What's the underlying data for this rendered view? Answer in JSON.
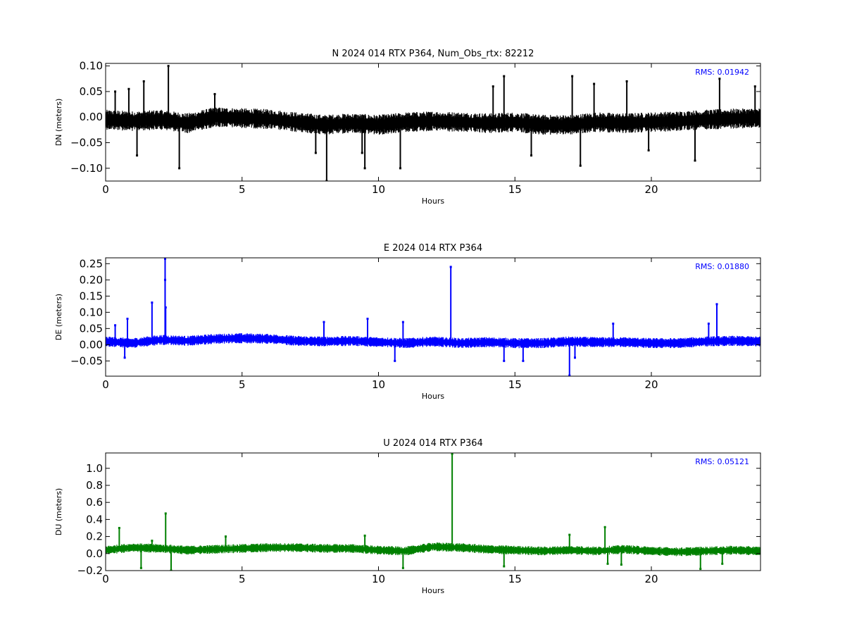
{
  "chart_data": [
    {
      "type": "scatter",
      "title": "N 2024 014 RTX  P364, Num_Obs_rtx: 82212",
      "xlabel": "Hours",
      "ylabel": "DN (meters)",
      "xlim": [
        0,
        24
      ],
      "ylim": [
        -0.125,
        0.105
      ],
      "xticks": [
        "0",
        "5",
        "10",
        "15",
        "20"
      ],
      "yticks": [
        "-0.10",
        "-0.05",
        "0.00",
        "0.05",
        "0.10"
      ],
      "grid": false,
      "rms_label": "RMS:  0.01942",
      "color": "#000000",
      "rms_color": "#0000ff",
      "series": [
        {
          "description": "North residual time series (approximate baseline level, band ±0.015 m)",
          "x": [
            0,
            1,
            2,
            3,
            4,
            5,
            6,
            7,
            8,
            9,
            10,
            11,
            12,
            13,
            14,
            15,
            16,
            17,
            18,
            19,
            20,
            21,
            22,
            23,
            24
          ],
          "y": [
            -0.005,
            -0.008,
            -0.005,
            -0.012,
            0.0,
            -0.002,
            -0.004,
            -0.01,
            -0.015,
            -0.012,
            -0.015,
            -0.01,
            -0.008,
            -0.01,
            -0.012,
            -0.01,
            -0.015,
            -0.015,
            -0.01,
            -0.012,
            -0.01,
            -0.008,
            -0.005,
            -0.003,
            -0.002
          ],
          "spikes": [
            {
              "x": 0.35,
              "y": 0.05
            },
            {
              "x": 0.85,
              "y": 0.055
            },
            {
              "x": 1.4,
              "y": 0.07
            },
            {
              "x": 2.3,
              "y": 0.1
            },
            {
              "x": 1.15,
              "y": -0.075
            },
            {
              "x": 2.7,
              "y": -0.1
            },
            {
              "x": 4.0,
              "y": 0.045
            },
            {
              "x": 7.7,
              "y": -0.07
            },
            {
              "x": 8.1,
              "y": -0.125
            },
            {
              "x": 9.4,
              "y": -0.07
            },
            {
              "x": 9.5,
              "y": -0.1
            },
            {
              "x": 10.8,
              "y": -0.1
            },
            {
              "x": 14.2,
              "y": 0.06
            },
            {
              "x": 14.6,
              "y": 0.08
            },
            {
              "x": 15.6,
              "y": -0.075
            },
            {
              "x": 17.1,
              "y": 0.08
            },
            {
              "x": 17.4,
              "y": -0.095
            },
            {
              "x": 17.9,
              "y": 0.065
            },
            {
              "x": 19.1,
              "y": 0.07
            },
            {
              "x": 19.9,
              "y": -0.065
            },
            {
              "x": 21.6,
              "y": -0.085
            },
            {
              "x": 22.5,
              "y": 0.075
            },
            {
              "x": 23.8,
              "y": 0.06
            }
          ]
        }
      ]
    },
    {
      "type": "scatter",
      "title": "E 2024 014 RTX  P364",
      "xlabel": "Hours",
      "ylabel": "DE (meters)",
      "xlim": [
        0,
        24
      ],
      "ylim": [
        -0.097,
        0.268
      ],
      "xticks": [
        "0",
        "5",
        "10",
        "15",
        "20"
      ],
      "yticks": [
        "-0.05",
        "0.00",
        "0.05",
        "0.10",
        "0.15",
        "0.20",
        "0.25"
      ],
      "grid": false,
      "rms_label": "RMS:  0.01880",
      "color": "#0000ff",
      "rms_color": "#0000ff",
      "series": [
        {
          "description": "East residual time series (approximate baseline level, band ±0.012 m)",
          "x": [
            0,
            1,
            2,
            3,
            4,
            5,
            6,
            7,
            8,
            9,
            10,
            11,
            12,
            13,
            14,
            15,
            16,
            17,
            18,
            19,
            20,
            21,
            22,
            23,
            24
          ],
          "y": [
            0.01,
            0.005,
            0.015,
            0.012,
            0.018,
            0.02,
            0.018,
            0.012,
            0.01,
            0.012,
            0.008,
            0.005,
            0.01,
            0.005,
            0.008,
            0.005,
            0.005,
            0.01,
            0.008,
            0.008,
            0.005,
            0.005,
            0.01,
            0.012,
            0.01
          ],
          "spikes": [
            {
              "x": 0.35,
              "y": 0.06
            },
            {
              "x": 0.8,
              "y": 0.08
            },
            {
              "x": 1.7,
              "y": 0.13
            },
            {
              "x": 2.2,
              "y": 0.115
            },
            {
              "x": 2.18,
              "y": 0.2
            },
            {
              "x": 2.18,
              "y": 0.265
            },
            {
              "x": 0.7,
              "y": -0.04
            },
            {
              "x": 8.0,
              "y": 0.07
            },
            {
              "x": 9.6,
              "y": 0.08
            },
            {
              "x": 10.6,
              "y": -0.05
            },
            {
              "x": 10.9,
              "y": 0.07
            },
            {
              "x": 12.65,
              "y": 0.24
            },
            {
              "x": 14.6,
              "y": -0.05
            },
            {
              "x": 15.3,
              "y": -0.05
            },
            {
              "x": 17.0,
              "y": -0.095
            },
            {
              "x": 17.2,
              "y": -0.04
            },
            {
              "x": 18.6,
              "y": 0.065
            },
            {
              "x": 22.4,
              "y": 0.125
            },
            {
              "x": 22.1,
              "y": 0.065
            }
          ]
        }
      ]
    },
    {
      "type": "scatter",
      "title": "U 2024 014 RTX  P364",
      "xlabel": "Hours",
      "ylabel": "DU (meters)",
      "xlim": [
        0,
        24
      ],
      "ylim": [
        -0.2,
        1.18
      ],
      "xticks": [
        "0",
        "5",
        "10",
        "15",
        "20"
      ],
      "yticks": [
        "-0.2",
        "0.0",
        "0.2",
        "0.4",
        "0.6",
        "0.8",
        "1.0"
      ],
      "grid": false,
      "rms_label": "RMS:  0.05121",
      "color": "#008000",
      "rms_color": "#0000ff",
      "series": [
        {
          "description": "Up residual time series (approximate baseline level, band ±0.04 m)",
          "x": [
            0,
            1,
            2,
            3,
            4,
            5,
            6,
            7,
            8,
            9,
            10,
            11,
            12,
            13,
            14,
            15,
            16,
            17,
            18,
            19,
            20,
            21,
            22,
            23,
            24
          ],
          "y": [
            0.04,
            0.07,
            0.06,
            0.04,
            0.05,
            0.06,
            0.07,
            0.07,
            0.06,
            0.06,
            0.04,
            0.03,
            0.08,
            0.07,
            0.05,
            0.04,
            0.03,
            0.04,
            0.03,
            0.05,
            0.03,
            0.02,
            0.03,
            0.04,
            0.03
          ],
          "spikes": [
            {
              "x": 0.5,
              "y": 0.3
            },
            {
              "x": 1.3,
              "y": -0.17
            },
            {
              "x": 1.7,
              "y": 0.15
            },
            {
              "x": 2.2,
              "y": 0.47
            },
            {
              "x": 2.4,
              "y": -0.2
            },
            {
              "x": 4.4,
              "y": 0.2
            },
            {
              "x": 9.5,
              "y": 0.21
            },
            {
              "x": 10.9,
              "y": -0.17
            },
            {
              "x": 12.7,
              "y": 1.17
            },
            {
              "x": 14.6,
              "y": -0.15
            },
            {
              "x": 17.0,
              "y": 0.22
            },
            {
              "x": 18.3,
              "y": 0.31
            },
            {
              "x": 18.4,
              "y": -0.12
            },
            {
              "x": 18.9,
              "y": -0.13
            },
            {
              "x": 21.8,
              "y": -0.18
            },
            {
              "x": 22.6,
              "y": -0.12
            }
          ]
        }
      ]
    }
  ]
}
